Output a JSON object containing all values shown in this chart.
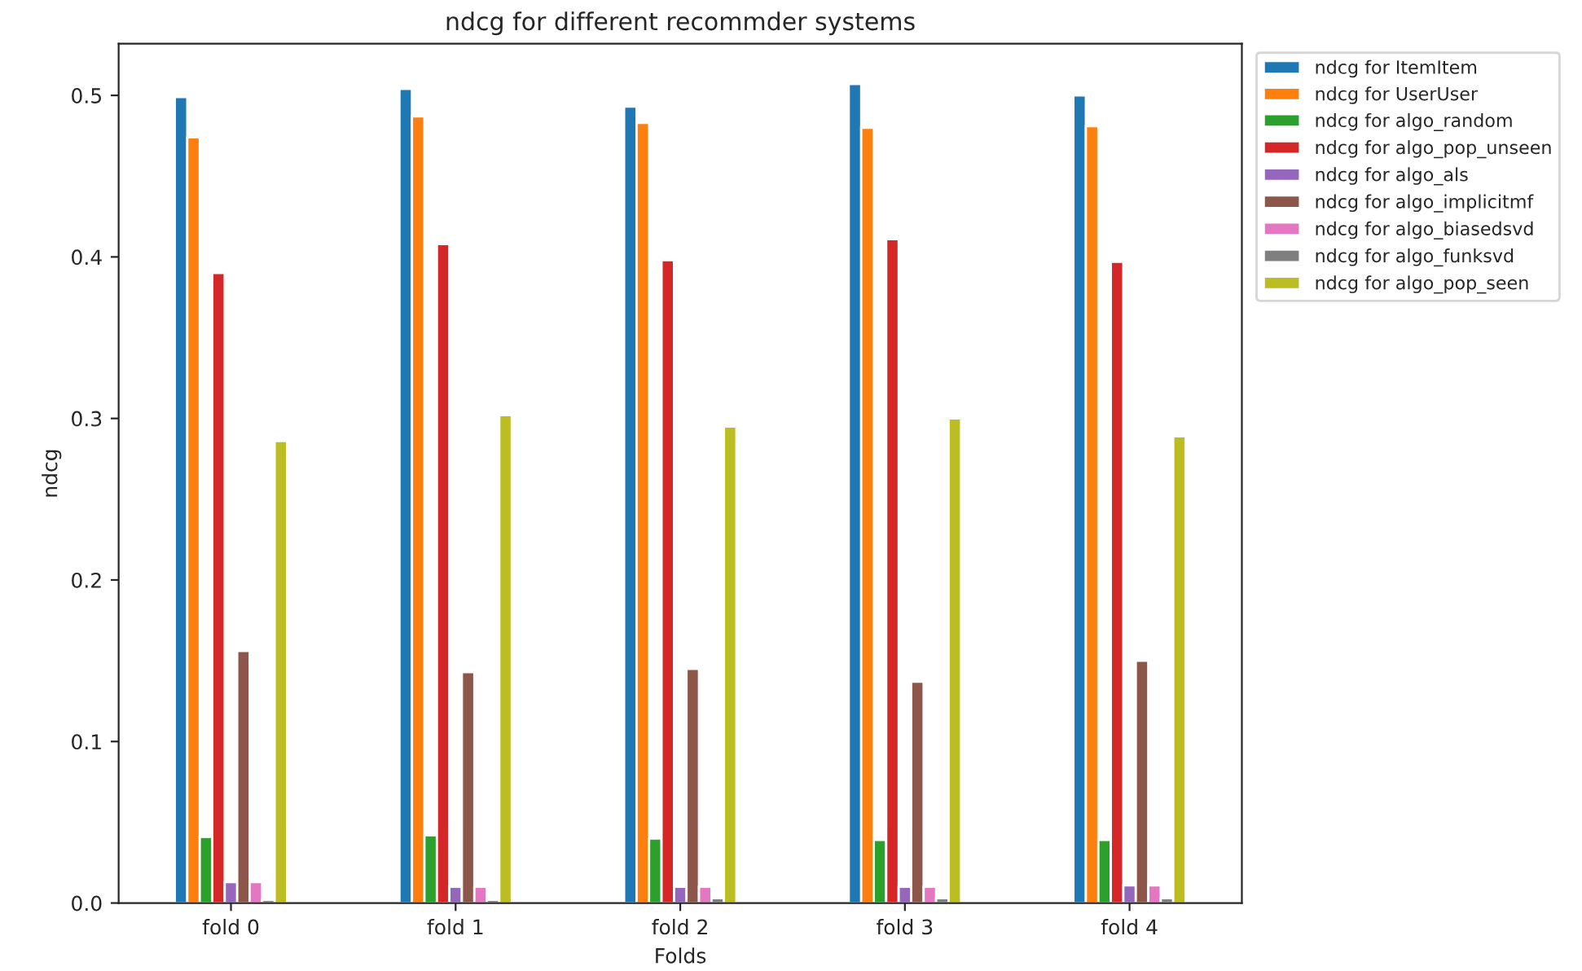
{
  "chart_data": {
    "type": "bar",
    "title": "ndcg for different recommder systems",
    "xlabel": "Folds",
    "ylabel": "ndcg",
    "categories": [
      "fold 0",
      "fold 1",
      "fold 2",
      "fold 3",
      "fold 4"
    ],
    "series": [
      {
        "name": "ndcg for ItemItem",
        "color": "#1f77b4",
        "values": [
          0.499,
          0.504,
          0.493,
          0.507,
          0.5
        ]
      },
      {
        "name": "ndcg for UserUser",
        "color": "#ff7f0e",
        "values": [
          0.474,
          0.487,
          0.483,
          0.48,
          0.481
        ]
      },
      {
        "name": "ndcg for algo_random",
        "color": "#2ca02c",
        "values": [
          0.041,
          0.042,
          0.04,
          0.039,
          0.039
        ]
      },
      {
        "name": "ndcg for algo_pop_unseen",
        "color": "#d62728",
        "values": [
          0.39,
          0.408,
          0.398,
          0.411,
          0.397
        ]
      },
      {
        "name": "ndcg for algo_als",
        "color": "#9467bd",
        "values": [
          0.013,
          0.01,
          0.01,
          0.01,
          0.011
        ]
      },
      {
        "name": "ndcg for algo_implicitmf",
        "color": "#8c564b",
        "values": [
          0.156,
          0.143,
          0.145,
          0.137,
          0.15
        ]
      },
      {
        "name": "ndcg for algo_biasedsvd",
        "color": "#e377c2",
        "values": [
          0.013,
          0.01,
          0.01,
          0.01,
          0.011
        ]
      },
      {
        "name": "ndcg for algo_funksvd",
        "color": "#7f7f7f",
        "values": [
          0.002,
          0.002,
          0.003,
          0.003,
          0.003
        ]
      },
      {
        "name": "ndcg for algo_pop_seen",
        "color": "#bcbd22",
        "values": [
          0.286,
          0.302,
          0.295,
          0.3,
          0.289
        ]
      }
    ],
    "ylim": [
      0,
      0.532
    ],
    "yticks": [
      {
        "value": 0,
        "label": "0.0"
      },
      0.1,
      0.2,
      0.3,
      0.4,
      0.5
    ],
    "grid": false,
    "legend": "top right"
  }
}
